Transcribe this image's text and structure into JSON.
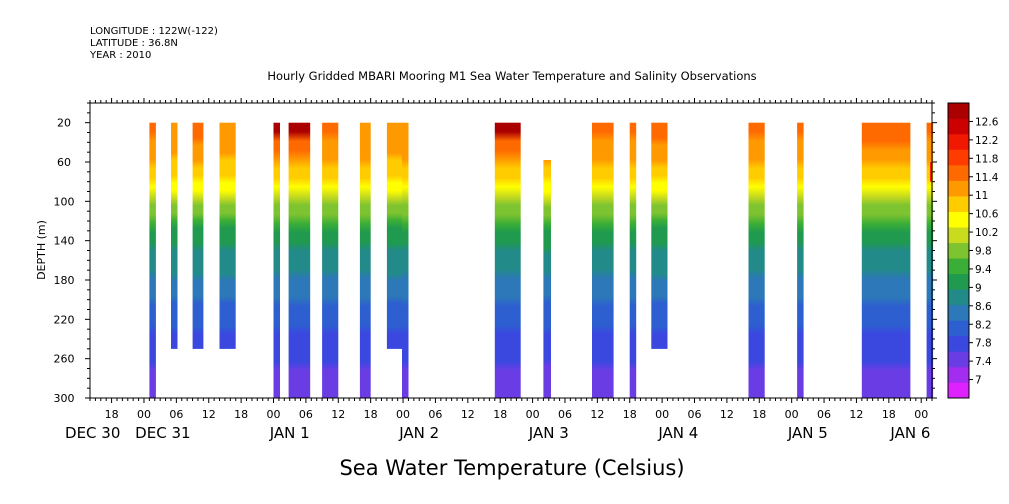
{
  "header": {
    "longitude": "LONGITUDE : 122W(-122)",
    "latitude": "LATITUDE : 36.8N",
    "year": "YEAR : 2010"
  },
  "chart_data": {
    "type": "heatmap",
    "title": "Hourly Gridded MBARI Mooring M1 Sea Water Temperature and Salinity Observations",
    "xlabel": "",
    "ylabel": "DEPTH (m)",
    "bottom_label": "Sea Water Temperature (Celsius)",
    "x_unit": "hours since 2009-12-30 00:00",
    "xlim": [
      14,
      170
    ],
    "ylim": [
      300,
      0
    ],
    "y_ticks": [
      20,
      60,
      100,
      140,
      180,
      220,
      260,
      300
    ],
    "x_hour_ticks": [
      {
        "hour": 18,
        "label": "18"
      },
      {
        "hour": 24,
        "label": "00"
      },
      {
        "hour": 30,
        "label": "06"
      },
      {
        "hour": 36,
        "label": "12"
      },
      {
        "hour": 42,
        "label": "18"
      },
      {
        "hour": 48,
        "label": "00"
      },
      {
        "hour": 54,
        "label": "06"
      },
      {
        "hour": 60,
        "label": "12"
      },
      {
        "hour": 66,
        "label": "18"
      },
      {
        "hour": 72,
        "label": "00"
      },
      {
        "hour": 78,
        "label": "06"
      },
      {
        "hour": 84,
        "label": "12"
      },
      {
        "hour": 90,
        "label": "18"
      },
      {
        "hour": 96,
        "label": "00"
      },
      {
        "hour": 102,
        "label": "06"
      },
      {
        "hour": 108,
        "label": "12"
      },
      {
        "hour": 114,
        "label": "18"
      },
      {
        "hour": 120,
        "label": "00"
      },
      {
        "hour": 126,
        "label": "06"
      },
      {
        "hour": 132,
        "label": "12"
      },
      {
        "hour": 138,
        "label": "18"
      },
      {
        "hour": 144,
        "label": "00"
      },
      {
        "hour": 150,
        "label": "06"
      },
      {
        "hour": 156,
        "label": "12"
      },
      {
        "hour": 162,
        "label": "18"
      },
      {
        "hour": 168,
        "label": "00"
      },
      {
        "hour": 174,
        "label": "06"
      },
      {
        "hour": 180,
        "label": "12"
      }
    ],
    "x_day_labels": [
      {
        "hour": 14.5,
        "label": "DEC 30"
      },
      {
        "hour": 27.5,
        "label": "DEC 31"
      },
      {
        "hour": 51,
        "label": "JAN  1"
      },
      {
        "hour": 75,
        "label": "JAN  2"
      },
      {
        "hour": 99,
        "label": "JAN  3"
      },
      {
        "hour": 123,
        "label": "JAN  4"
      },
      {
        "hour": 147,
        "label": "JAN  5"
      },
      {
        "hour": 166,
        "label": "JAN  6"
      }
    ],
    "colorbar": {
      "levels": [
        7,
        7.4,
        7.8,
        8.2,
        8.6,
        9,
        9.4,
        9.8,
        10.2,
        10.6,
        11,
        11.4,
        11.8,
        12.2,
        12.6
      ],
      "labels": [
        "7",
        "7.4",
        "7.8",
        "8.2",
        "8.6",
        "9",
        "9.4",
        "9.8",
        "10.2",
        "10.6",
        "11",
        "11.4",
        "11.8",
        "12.2",
        "12.6"
      ],
      "colors": [
        "#dd22ff",
        "#a22cf0",
        "#6a3de4",
        "#3a48e0",
        "#2d5fd0",
        "#2c78b8",
        "#238a8a",
        "#1f9a4e",
        "#3aae36",
        "#7ec330",
        "#c9db1e",
        "#ffff00",
        "#ffcc00",
        "#ff9900",
        "#ff6a00",
        "#ff3c00",
        "#f01800",
        "#cc0000",
        "#aa0000"
      ]
    },
    "data_segments": [
      {
        "start": 25.0,
        "end": 26.2,
        "depth_max": 300,
        "surface_temp": 12.2
      },
      {
        "start": 29.0,
        "end": 30.2,
        "depth_max": 250,
        "surface_temp": 12.0
      },
      {
        "start": 33.0,
        "end": 35.0,
        "depth_max": 250,
        "surface_temp": 12.3
      },
      {
        "start": 38.0,
        "end": 41.0,
        "depth_max": 250,
        "surface_temp": 12.0
      },
      {
        "start": 48.0,
        "end": 49.2,
        "depth_max": 300,
        "surface_temp": 12.6
      },
      {
        "start": 50.8,
        "end": 54.8,
        "depth_max": 300,
        "surface_temp": 12.6
      },
      {
        "start": 57.0,
        "end": 60.0,
        "depth_max": 300,
        "surface_temp": 12.2
      },
      {
        "start": 64.0,
        "end": 66.0,
        "depth_max": 300,
        "surface_temp": 12.0
      },
      {
        "start": 69.0,
        "end": 72.0,
        "depth_max": 250,
        "surface_temp": 12.0
      },
      {
        "start": 71.8,
        "end": 73.0,
        "depth_max": 300,
        "surface_temp": 12.0
      },
      {
        "start": 89.0,
        "end": 93.8,
        "depth_max": 300,
        "surface_temp": 12.6
      },
      {
        "start": 98.0,
        "end": 99.4,
        "depth_max": 300,
        "top": 58,
        "surface_temp": 12.0
      },
      {
        "start": 107.0,
        "end": 111.0,
        "depth_max": 300,
        "surface_temp": 12.2
      },
      {
        "start": 114.0,
        "end": 115.2,
        "depth_max": 300,
        "surface_temp": 12.2
      },
      {
        "start": 118.0,
        "end": 121.0,
        "depth_max": 250,
        "surface_temp": 12.3
      },
      {
        "start": 136.0,
        "end": 139.0,
        "depth_max": 300,
        "surface_temp": 12.2
      },
      {
        "start": 145.0,
        "end": 146.2,
        "depth_max": 300,
        "surface_temp": 12.2
      },
      {
        "start": 157.0,
        "end": 166.0,
        "depth_max": 300,
        "surface_temp": 12.3
      },
      {
        "start": 169.0,
        "end": 170.2,
        "depth_max": 300,
        "surface_temp": 12.2
      }
    ]
  }
}
